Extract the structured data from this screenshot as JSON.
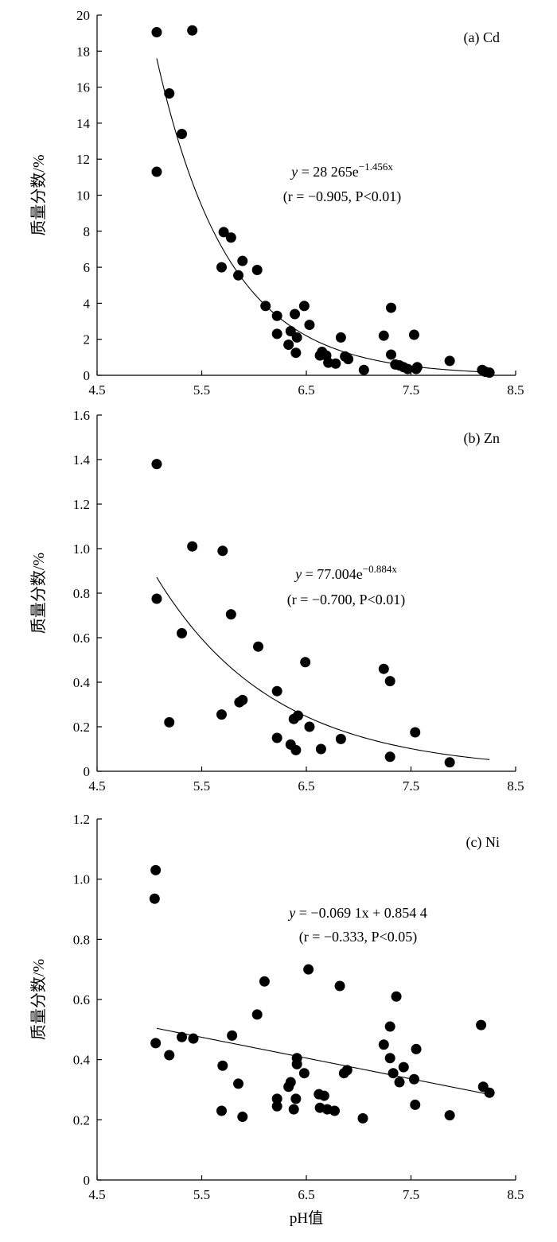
{
  "chart_data": [
    {
      "type": "scatter",
      "panel_label": "(a) Cd",
      "ylabel": "质量分数/%",
      "xlabel": "",
      "xlim": [
        4.5,
        8.5
      ],
      "ylim": [
        0,
        20
      ],
      "xticks": [
        "4.5",
        "5.5",
        "6.5",
        "7.5",
        "8.5"
      ],
      "yticks": [
        "0",
        "2",
        "4",
        "6",
        "8",
        "10",
        "12",
        "14",
        "16",
        "18",
        "20"
      ],
      "equation_line1": {
        "prefix": "y",
        "middle": " = 28 265e",
        "exponent": "−1.456x"
      },
      "equation_line2": "(r = −0.905, P<0.01)",
      "fit": {
        "kind": "exponential",
        "a": 28265,
        "b": -1.456,
        "x_range": [
          5.07,
          8.25
        ]
      },
      "points": [
        [
          5.07,
          19.05
        ],
        [
          5.41,
          19.15
        ],
        [
          5.07,
          11.3
        ],
        [
          5.19,
          15.65
        ],
        [
          5.31,
          13.4
        ],
        [
          5.71,
          7.95
        ],
        [
          5.78,
          7.65
        ],
        [
          5.69,
          6.0
        ],
        [
          5.89,
          6.35
        ],
        [
          5.85,
          5.55
        ],
        [
          6.03,
          5.85
        ],
        [
          6.11,
          3.85
        ],
        [
          6.22,
          3.3
        ],
        [
          6.22,
          2.3
        ],
        [
          6.33,
          1.7
        ],
        [
          6.35,
          2.45
        ],
        [
          6.39,
          3.4
        ],
        [
          6.41,
          2.1
        ],
        [
          6.4,
          1.25
        ],
        [
          6.48,
          3.85
        ],
        [
          6.53,
          2.8
        ],
        [
          6.63,
          1.1
        ],
        [
          6.65,
          1.3
        ],
        [
          6.69,
          1.1
        ],
        [
          6.71,
          0.7
        ],
        [
          6.78,
          0.65
        ],
        [
          6.83,
          2.1
        ],
        [
          6.87,
          1.05
        ],
        [
          6.9,
          0.9
        ],
        [
          7.05,
          0.3
        ],
        [
          7.24,
          2.2
        ],
        [
          7.31,
          3.75
        ],
        [
          7.31,
          1.15
        ],
        [
          7.35,
          0.6
        ],
        [
          7.39,
          0.55
        ],
        [
          7.43,
          0.45
        ],
        [
          7.47,
          0.35
        ],
        [
          7.53,
          2.25
        ],
        [
          7.55,
          0.35
        ],
        [
          7.56,
          0.45
        ],
        [
          7.87,
          0.8
        ],
        [
          8.18,
          0.3
        ],
        [
          8.21,
          0.2
        ],
        [
          8.25,
          0.15
        ]
      ]
    },
    {
      "type": "scatter",
      "panel_label": "(b) Zn",
      "ylabel": "质量分数/%",
      "xlabel": "",
      "xlim": [
        4.5,
        8.5
      ],
      "ylim": [
        0,
        1.6
      ],
      "xticks": [
        "4.5",
        "5.5",
        "6.5",
        "7.5",
        "8.5"
      ],
      "yticks": [
        "0",
        "0.2",
        "0.4",
        "0.6",
        "0.8",
        "1.0",
        "1.2",
        "1.4",
        "1.6"
      ],
      "equation_line1": {
        "prefix": "y",
        "middle": " = 77.004e",
        "exponent": "−0.884x"
      },
      "equation_line2": "(r = −0.700, P<0.01)",
      "fit": {
        "kind": "exponential",
        "a": 77.004,
        "b": -0.884,
        "x_range": [
          5.07,
          8.25
        ]
      },
      "points": [
        [
          5.07,
          1.38
        ],
        [
          5.07,
          0.775
        ],
        [
          5.19,
          0.22
        ],
        [
          5.31,
          0.62
        ],
        [
          5.41,
          1.01
        ],
        [
          5.7,
          0.99
        ],
        [
          5.69,
          0.255
        ],
        [
          5.78,
          0.705
        ],
        [
          5.86,
          0.31
        ],
        [
          5.89,
          0.32
        ],
        [
          6.04,
          0.56
        ],
        [
          6.22,
          0.36
        ],
        [
          6.22,
          0.15
        ],
        [
          6.35,
          0.12
        ],
        [
          6.38,
          0.235
        ],
        [
          6.42,
          0.25
        ],
        [
          6.4,
          0.095
        ],
        [
          6.49,
          0.49
        ],
        [
          6.53,
          0.2
        ],
        [
          6.64,
          0.1
        ],
        [
          6.83,
          0.145
        ],
        [
          7.24,
          0.46
        ],
        [
          7.3,
          0.405
        ],
        [
          7.3,
          0.065
        ],
        [
          7.54,
          0.175
        ],
        [
          7.87,
          0.04
        ]
      ]
    },
    {
      "type": "scatter",
      "panel_label": "(c) Ni",
      "ylabel": "质量分数/%",
      "xlabel": "pH值",
      "xlim": [
        4.5,
        8.5
      ],
      "ylim": [
        0,
        1.2
      ],
      "xticks": [
        "4.5",
        "5.5",
        "6.5",
        "7.5",
        "8.5"
      ],
      "yticks": [
        "0",
        "0.2",
        "0.4",
        "0.6",
        "0.8",
        "1.0",
        "1.2"
      ],
      "equation_line1": {
        "prefix": "y",
        "middle": " = −0.069 1x + 0.854 4",
        "exponent": ""
      },
      "equation_line2": "(r = −0.333, P<0.05)",
      "fit": {
        "kind": "linear",
        "a": 0.8544,
        "b": -0.0691,
        "x_range": [
          5.07,
          8.25
        ]
      },
      "points": [
        [
          5.06,
          1.03
        ],
        [
          5.05,
          0.935
        ],
        [
          5.06,
          0.455
        ],
        [
          5.19,
          0.415
        ],
        [
          5.31,
          0.475
        ],
        [
          5.42,
          0.47
        ],
        [
          5.69,
          0.23
        ],
        [
          5.7,
          0.38
        ],
        [
          5.79,
          0.48
        ],
        [
          5.85,
          0.32
        ],
        [
          5.89,
          0.21
        ],
        [
          6.03,
          0.55
        ],
        [
          6.1,
          0.66
        ],
        [
          6.22,
          0.27
        ],
        [
          6.22,
          0.245
        ],
        [
          6.33,
          0.31
        ],
        [
          6.35,
          0.325
        ],
        [
          6.38,
          0.235
        ],
        [
          6.4,
          0.27
        ],
        [
          6.41,
          0.405
        ],
        [
          6.41,
          0.385
        ],
        [
          6.48,
          0.355
        ],
        [
          6.52,
          0.7
        ],
        [
          6.62,
          0.285
        ],
        [
          6.63,
          0.24
        ],
        [
          6.67,
          0.28
        ],
        [
          6.7,
          0.235
        ],
        [
          6.77,
          0.23
        ],
        [
          6.82,
          0.645
        ],
        [
          6.86,
          0.355
        ],
        [
          6.89,
          0.365
        ],
        [
          7.04,
          0.205
        ],
        [
          7.24,
          0.45
        ],
        [
          7.3,
          0.51
        ],
        [
          7.3,
          0.405
        ],
        [
          7.33,
          0.355
        ],
        [
          7.36,
          0.61
        ],
        [
          7.39,
          0.325
        ],
        [
          7.43,
          0.375
        ],
        [
          7.53,
          0.335
        ],
        [
          7.54,
          0.25
        ],
        [
          7.55,
          0.435
        ],
        [
          7.87,
          0.215
        ],
        [
          8.17,
          0.515
        ],
        [
          8.19,
          0.31
        ],
        [
          8.25,
          0.29
        ]
      ]
    }
  ]
}
